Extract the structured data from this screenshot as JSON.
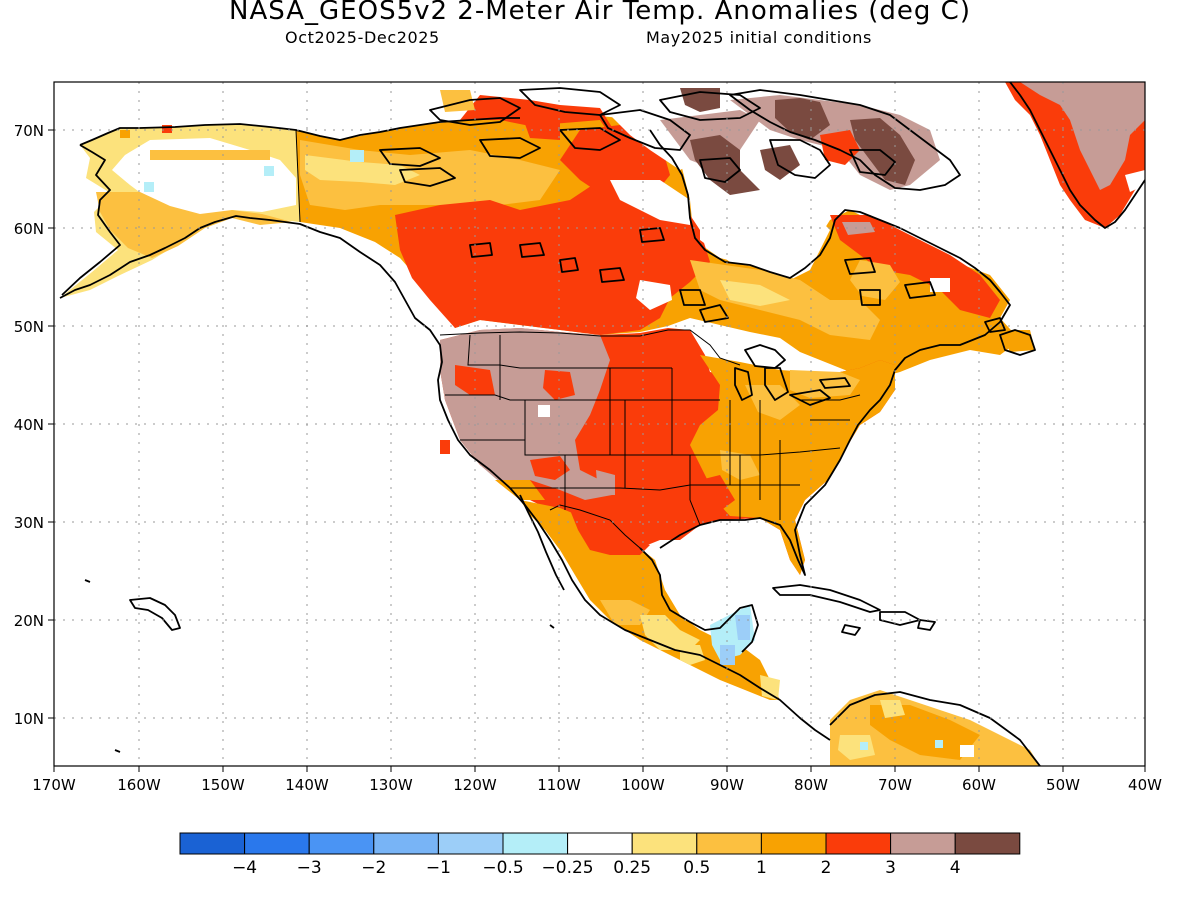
{
  "title": "NASA_GEOS5v2 2-Meter Air Temp. Anomalies (deg C)",
  "period": "Oct2025-Dec2025",
  "initial_conditions": "May2025 initial conditions",
  "lat_labels": [
    "70N",
    "60N",
    "50N",
    "40N",
    "30N",
    "20N",
    "10N"
  ],
  "lon_labels": [
    "170W",
    "160W",
    "150W",
    "140W",
    "130W",
    "120W",
    "110W",
    "100W",
    "90W",
    "80W",
    "70W",
    "60W",
    "50W",
    "40W"
  ],
  "colorbar": {
    "colors": [
      "#1a62d4",
      "#2a78ec",
      "#4a94f4",
      "#78b4f6",
      "#9ccef8",
      "#b4eef8",
      "#ffffff",
      "#fce27c",
      "#fcc040",
      "#f8a202",
      "#fa3c0a",
      "#c69c96",
      "#7a4a40"
    ],
    "labels": [
      "-4",
      "-3",
      "-2",
      "-1",
      "-0.5",
      "-0.25",
      "0.25",
      "0.5",
      "1",
      "2",
      "3",
      "4"
    ]
  }
}
